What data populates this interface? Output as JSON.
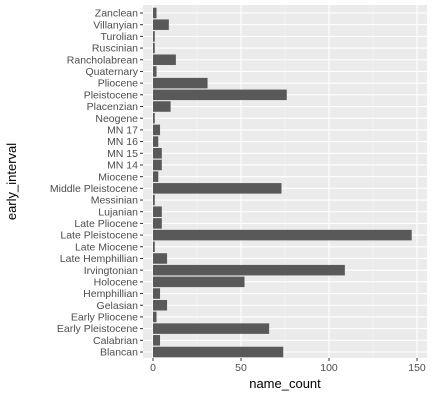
{
  "chart_data": {
    "type": "bar",
    "orientation": "horizontal",
    "xlabel": "name_count",
    "ylabel": "early_interval",
    "xlim": [
      0,
      155
    ],
    "x_ticks": [
      0,
      50,
      100,
      150
    ],
    "grid": true,
    "panel_background": "#ebebeb",
    "bar_color": "#595959",
    "categories": [
      "Blancan",
      "Calabrian",
      "Early Pleistocene",
      "Early Pliocene",
      "Gelasian",
      "Hemphillian",
      "Holocene",
      "Irvingtonian",
      "Late Hemphillian",
      "Late Miocene",
      "Late Pleistocene",
      "Late Pliocene",
      "Lujanian",
      "Messinian",
      "Middle Pleistocene",
      "Miocene",
      "MN 14",
      "MN 15",
      "MN 16",
      "MN 17",
      "Neogene",
      "Placenzian",
      "Pleistocene",
      "Pliocene",
      "Quaternary",
      "Rancholabrean",
      "Ruscinian",
      "Turolian",
      "Villanyian",
      "Zanclean"
    ],
    "values": [
      74,
      4,
      66,
      2,
      8,
      4,
      52,
      109,
      8,
      1,
      147,
      5,
      5,
      1,
      73,
      3,
      5,
      5,
      3,
      4,
      1,
      10,
      76,
      31,
      2,
      13,
      1,
      1,
      9,
      2
    ]
  }
}
